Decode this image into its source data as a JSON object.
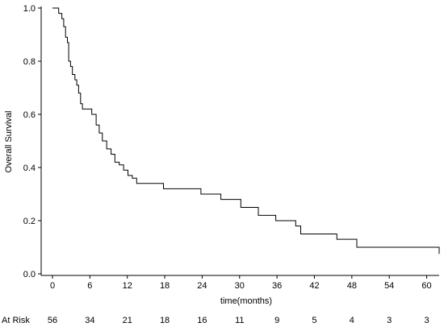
{
  "chart_data": {
    "type": "line",
    "title": "",
    "xlabel": "time(months)",
    "ylabel": "Overall Survival",
    "xlim": [
      0,
      62
    ],
    "ylim": [
      0,
      1
    ],
    "x_ticks": [
      0,
      6,
      12,
      18,
      24,
      30,
      36,
      42,
      48,
      54,
      60
    ],
    "x_tick_labels": [
      "0",
      "6",
      "12",
      "18",
      "24",
      "30",
      "36",
      "42",
      "48",
      "54",
      "60"
    ],
    "y_ticks": [
      0,
      0.2,
      0.4,
      0.6,
      0.8,
      1.0
    ],
    "y_tick_labels": [
      "0.0",
      "0.2",
      "0.4",
      "0.6",
      "0.8",
      "1.0"
    ],
    "grid": false,
    "series": [
      {
        "step": "post",
        "x": [
          0,
          1.0,
          1.5,
          1.8,
          2.1,
          2.4,
          2.6,
          2.9,
          3.2,
          3.6,
          3.9,
          4.2,
          4.5,
          4.8,
          5.1,
          6.3,
          7.0,
          7.5,
          8.0,
          8.7,
          9.4,
          10.0,
          10.7,
          11.4,
          12.1,
          12.8,
          13.5,
          17.8,
          22.8,
          23.8,
          27.0,
          30.2,
          33.0,
          35.8,
          39.0,
          39.8,
          45.6,
          48.8,
          62.0
        ],
        "y": [
          1.0,
          0.98,
          0.96,
          0.93,
          0.89,
          0.87,
          0.8,
          0.78,
          0.75,
          0.73,
          0.71,
          0.68,
          0.64,
          0.62,
          0.62,
          0.6,
          0.56,
          0.53,
          0.5,
          0.47,
          0.45,
          0.42,
          0.41,
          0.39,
          0.37,
          0.36,
          0.34,
          0.32,
          0.32,
          0.3,
          0.28,
          0.25,
          0.22,
          0.2,
          0.18,
          0.15,
          0.13,
          0.1,
          0.075
        ]
      }
    ],
    "at_risk": {
      "label": "At Risk",
      "times": [
        0,
        6,
        12,
        18,
        24,
        30,
        36,
        42,
        48,
        54,
        60
      ],
      "counts": [
        "56",
        "34",
        "21",
        "18",
        "16",
        "11",
        "9",
        "5",
        "4",
        "3",
        "3"
      ]
    }
  }
}
